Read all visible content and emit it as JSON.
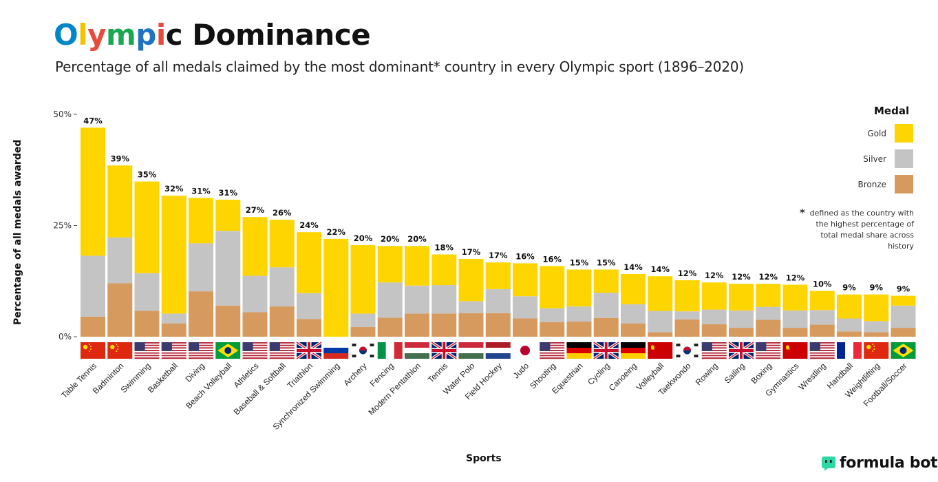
{
  "title": {
    "letters": [
      "O",
      "l",
      "y",
      "m",
      "p",
      "i",
      "c"
    ],
    "rest": " Dominance",
    "letter_colors": [
      "#0085C7",
      "#F4C300",
      "#E64B3C",
      "#19A84F",
      "#1F73C0",
      "#E64B3C",
      "#111111"
    ]
  },
  "subtitle": "Percentage of all medals claimed by the most dominant* country in every Olympic sport (1896–2020)",
  "ylabel": "Percentage of all medals awarded",
  "xlabel": "Sports",
  "legend": {
    "title": "Medal",
    "items": [
      "Gold",
      "Silver",
      "Bronze"
    ]
  },
  "colors": {
    "gold": "#FFD500",
    "silver": "#C4C4C4",
    "bronze": "#D69A5E"
  },
  "note": {
    "star": "*",
    "text": "defined as the country with the highest percentage of total medal share across history"
  },
  "brand": {
    "name": "formula bot"
  },
  "chart_data": {
    "type": "bar",
    "stacked": true,
    "ylim": [
      0,
      50
    ],
    "yticks": [
      "0%",
      "25%",
      "50%"
    ],
    "categories": [
      "Table Tennis",
      "Badminton",
      "Swimming",
      "Basketball",
      "Diving",
      "Beach Volleyball",
      "Athletics",
      "Baseball & Softball",
      "Triathlon",
      "Synchronized Swimming",
      "Archery",
      "Fencing",
      "Modern Pentathlon",
      "Tennis",
      "Water Polo",
      "Field Hockey",
      "Judo",
      "Shooting",
      "Equestrian",
      "Cycling",
      "Canoeing",
      "Volleyball",
      "Taekwondo",
      "Rowing",
      "Sailing",
      "Boxing",
      "Gymnastics",
      "Wrestling",
      "Handball",
      "Weightlifting",
      "Football/Soccer"
    ],
    "totals": [
      "47%",
      "39%",
      "35%",
      "32%",
      "31%",
      "31%",
      "27%",
      "26%",
      "24%",
      "22%",
      "20%",
      "20%",
      "20%",
      "18%",
      "17%",
      "17%",
      "16%",
      "16%",
      "15%",
      "15%",
      "14%",
      "14%",
      "12%",
      "12%",
      "12%",
      "12%",
      "12%",
      "10%",
      "9%",
      "9%",
      "9%"
    ],
    "flags": [
      "china",
      "china",
      "usa",
      "usa",
      "usa",
      "brazil",
      "usa",
      "usa",
      "uk",
      "russia",
      "korea",
      "italy",
      "hungary",
      "uk",
      "hungary",
      "netherlands",
      "japan",
      "usa",
      "germany",
      "uk",
      "germany",
      "ussr",
      "korea",
      "usa",
      "uk",
      "usa",
      "ussr",
      "usa",
      "france",
      "china",
      "brazil"
    ],
    "series": [
      {
        "name": "Bronze",
        "values": [
          4.5,
          12.0,
          5.8,
          3.0,
          10.2,
          7.0,
          5.5,
          6.8,
          4.0,
          0,
          2.2,
          4.3,
          5.2,
          5.2,
          5.3,
          5.3,
          4.1,
          3.3,
          3.4,
          4.2,
          3.0,
          1.0,
          3.9,
          2.8,
          2.0,
          3.8,
          2.0,
          2.7,
          1.2,
          1.0,
          2.0
        ]
      },
      {
        "name": "Silver",
        "values": [
          13.7,
          10.3,
          8.5,
          2.2,
          10.8,
          16.8,
          8.2,
          8.8,
          5.8,
          0,
          3.0,
          7.9,
          6.3,
          6.4,
          2.7,
          5.4,
          5.0,
          3.1,
          3.4,
          5.7,
          4.3,
          4.8,
          1.8,
          3.3,
          3.9,
          2.9,
          3.9,
          3.3,
          2.9,
          2.5,
          5.0
        ]
      },
      {
        "name": "Gold",
        "values": [
          28.8,
          16.2,
          20.6,
          26.5,
          10.2,
          7.0,
          13.2,
          10.7,
          13.7,
          22.0,
          15.4,
          8.2,
          8.9,
          6.9,
          9.5,
          6.0,
          7.4,
          9.5,
          8.3,
          5.2,
          6.8,
          7.8,
          7.0,
          6.1,
          6.0,
          5.2,
          5.8,
          4.3,
          5.4,
          6.0,
          2.2
        ]
      }
    ]
  }
}
